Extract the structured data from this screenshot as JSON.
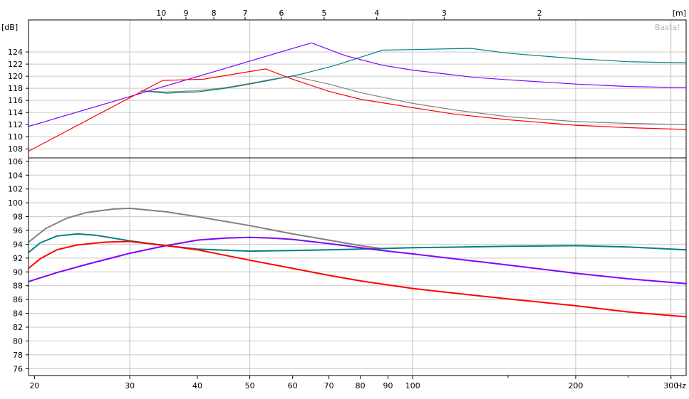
{
  "watermark": "Basta!",
  "chart_data": [
    {
      "id": "upper",
      "type": "line",
      "ylabel": "[dB]",
      "xscale": "log",
      "xlim": [
        19.5,
        320
      ],
      "ylim": [
        106.5,
        129.3
      ],
      "yticks": [
        108,
        110,
        112,
        114,
        116,
        118,
        120,
        122,
        124
      ],
      "grid": true,
      "top_axis": {
        "unit": "[m]",
        "ticks": [
          {
            "label": "10",
            "x": 34.3
          },
          {
            "label": "9",
            "x": 38.1
          },
          {
            "label": "8",
            "x": 42.9
          },
          {
            "label": "7",
            "x": 49.0
          },
          {
            "label": "6",
            "x": 57.2
          },
          {
            "label": "5",
            "x": 68.6
          },
          {
            "label": "4",
            "x": 85.8
          },
          {
            "label": "3",
            "x": 114.3
          },
          {
            "label": "2",
            "x": 171.5
          }
        ]
      },
      "series": [
        {
          "color": "#808080",
          "points": [
            [
              31.5,
              117.6
            ],
            [
              35,
              117.4
            ],
            [
              40,
              117.6
            ],
            [
              45,
              118.1
            ],
            [
              50,
              118.8
            ],
            [
              55,
              119.5
            ],
            [
              60,
              120.0
            ],
            [
              70,
              118.7
            ],
            [
              80,
              117.3
            ],
            [
              100,
              115.5
            ],
            [
              120,
              114.4
            ],
            [
              150,
              113.3
            ],
            [
              200,
              112.5
            ],
            [
              250,
              112.2
            ],
            [
              320,
              112.0
            ]
          ]
        },
        {
          "color": "#008080",
          "points": [
            [
              31.5,
              117.6
            ],
            [
              35,
              117.2
            ],
            [
              40,
              117.4
            ],
            [
              45,
              118.0
            ],
            [
              50,
              118.7
            ],
            [
              55,
              119.4
            ],
            [
              62,
              120.3
            ],
            [
              72,
              121.8
            ],
            [
              88,
              124.3
            ],
            [
              100,
              124.4
            ],
            [
              128,
              124.6
            ],
            [
              150,
              123.8
            ],
            [
              200,
              122.9
            ],
            [
              250,
              122.4
            ],
            [
              320,
              122.2
            ]
          ]
        },
        {
          "color": "#8000ff",
          "points": [
            [
              19.5,
              111.7
            ],
            [
              65,
              125.5
            ],
            [
              75,
              123.4
            ],
            [
              88,
              121.8
            ],
            [
              100,
              121.0
            ],
            [
              130,
              119.8
            ],
            [
              150,
              119.4
            ],
            [
              200,
              118.7
            ],
            [
              250,
              118.3
            ],
            [
              320,
              118.1
            ]
          ]
        },
        {
          "color": "#ff0000",
          "points": [
            [
              19.5,
              107.6
            ],
            [
              34.5,
              119.3
            ],
            [
              41,
              119.5
            ],
            [
              53.5,
              121.2
            ],
            [
              60,
              119.5
            ],
            [
              70,
              117.5
            ],
            [
              80,
              116.2
            ],
            [
              100,
              114.8
            ],
            [
              120,
              113.7
            ],
            [
              150,
              112.8
            ],
            [
              200,
              111.9
            ],
            [
              250,
              111.5
            ],
            [
              320,
              111.2
            ]
          ]
        }
      ]
    },
    {
      "id": "lower",
      "type": "line",
      "xlabel": "Hz",
      "xscale": "log",
      "xlim": [
        19.5,
        320
      ],
      "ylim": [
        75,
        106.5
      ],
      "yticks": [
        76,
        78,
        80,
        82,
        84,
        86,
        88,
        90,
        92,
        94,
        96,
        98,
        100,
        102,
        104,
        106
      ],
      "xticks": [
        {
          "label": "20",
          "x": 20
        },
        {
          "label": "30",
          "x": 30
        },
        {
          "label": "40",
          "x": 40
        },
        {
          "label": "50",
          "x": 50
        },
        {
          "label": "60",
          "x": 60
        },
        {
          "label": "70",
          "x": 70
        },
        {
          "label": "80",
          "x": 80
        },
        {
          "label": "90",
          "x": 90
        },
        {
          "label": "100",
          "x": 100
        },
        {
          "label": "200",
          "x": 200
        },
        {
          "label": "300",
          "x": 300
        }
      ],
      "minor_xticks": [
        150,
        250
      ],
      "grid": true,
      "series": [
        {
          "color": "#808080",
          "points": [
            [
              19.5,
              94.3
            ],
            [
              21,
              96.3
            ],
            [
              23,
              97.8
            ],
            [
              25,
              98.6
            ],
            [
              28,
              99.1
            ],
            [
              30,
              99.2
            ],
            [
              35,
              98.7
            ],
            [
              40,
              98.0
            ],
            [
              50,
              96.7
            ],
            [
              60,
              95.5
            ],
            [
              70,
              94.6
            ],
            [
              80,
              93.8
            ],
            [
              87,
              93.4
            ]
          ]
        },
        {
          "color": "#008080",
          "points": [
            [
              19.5,
              92.8
            ],
            [
              20.5,
              94.2
            ],
            [
              22,
              95.2
            ],
            [
              24,
              95.5
            ],
            [
              26,
              95.3
            ],
            [
              30,
              94.5
            ],
            [
              35,
              93.8
            ],
            [
              40,
              93.3
            ],
            [
              50,
              93.0
            ],
            [
              60,
              93.1
            ],
            [
              70,
              93.2
            ],
            [
              80,
              93.3
            ],
            [
              90,
              93.4
            ],
            [
              100,
              93.5
            ],
            [
              150,
              93.7
            ],
            [
              200,
              93.8
            ],
            [
              250,
              93.6
            ],
            [
              320,
              93.2
            ]
          ]
        },
        {
          "color": "#8000ff",
          "points": [
            [
              19.5,
              88.6
            ],
            [
              22,
              89.9
            ],
            [
              25,
              91.1
            ],
            [
              30,
              92.7
            ],
            [
              35,
              93.8
            ],
            [
              40,
              94.6
            ],
            [
              45,
              94.9
            ],
            [
              50,
              95.0
            ],
            [
              55,
              94.9
            ],
            [
              60,
              94.7
            ],
            [
              70,
              94.1
            ],
            [
              80,
              93.5
            ],
            [
              90,
              93.0
            ],
            [
              100,
              92.6
            ],
            [
              150,
              91.0
            ],
            [
              200,
              89.8
            ],
            [
              250,
              89.0
            ],
            [
              320,
              88.3
            ]
          ]
        },
        {
          "color": "#ff0000",
          "points": [
            [
              19.5,
              90.5
            ],
            [
              20.5,
              91.9
            ],
            [
              22,
              93.2
            ],
            [
              24,
              93.9
            ],
            [
              27,
              94.3
            ],
            [
              30,
              94.4
            ],
            [
              35,
              93.8
            ],
            [
              40,
              93.2
            ],
            [
              50,
              91.7
            ],
            [
              60,
              90.5
            ],
            [
              70,
              89.5
            ],
            [
              80,
              88.7
            ],
            [
              100,
              87.6
            ],
            [
              130,
              86.6
            ],
            [
              150,
              86.1
            ],
            [
              200,
              85.1
            ],
            [
              250,
              84.2
            ],
            [
              320,
              83.5
            ]
          ]
        }
      ]
    }
  ]
}
